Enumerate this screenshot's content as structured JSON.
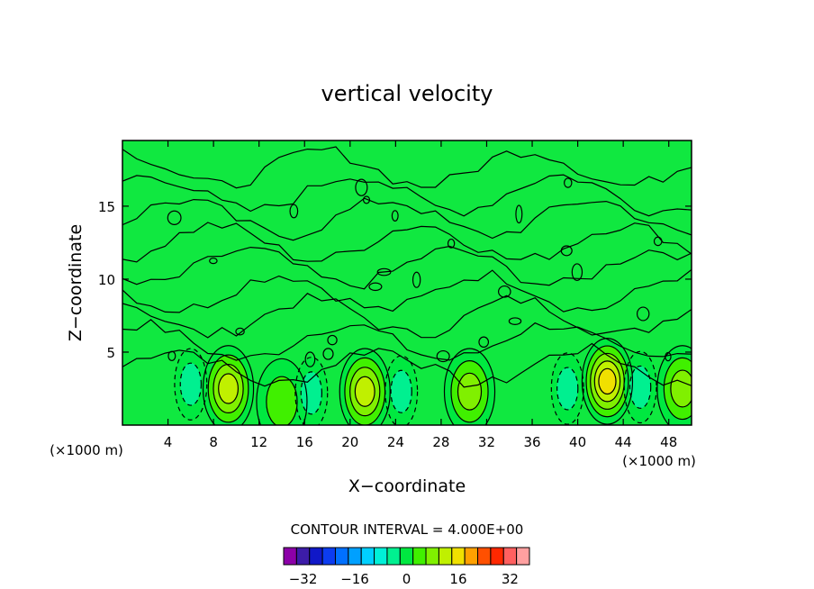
{
  "chart_data": {
    "type": "heatmap",
    "title": "vertical velocity",
    "xlabel": "X−coordinate",
    "ylabel": "Z−coordinate",
    "x_unit_label": "(×1000 m)",
    "y_unit_label": "(×1000 m)",
    "xlim": [
      0,
      50
    ],
    "ylim": [
      0,
      19.5
    ],
    "x_ticks": [
      4,
      8,
      12,
      16,
      20,
      24,
      28,
      32,
      36,
      40,
      44,
      48
    ],
    "y_ticks": [
      5,
      10,
      15
    ],
    "contour_interval_text": "CONTOUR INTERVAL = 4.000E+00",
    "contour_interval": 4,
    "colorbar": {
      "levels": [
        -36,
        -32,
        -28,
        -24,
        -20,
        -16,
        -12,
        -8,
        -4,
        0,
        4,
        8,
        12,
        16,
        20,
        24,
        28,
        32,
        36
      ],
      "colors": [
        "#8c00a8",
        "#3c1ca8",
        "#1018c8",
        "#0c3cf0",
        "#0070ff",
        "#00a0ff",
        "#00d0ff",
        "#00f0d8",
        "#00f090",
        "#00e840",
        "#40f000",
        "#80f000",
        "#c0f000",
        "#f0e000",
        "#ffa000",
        "#ff5000",
        "#ff2800",
        "#ff6060",
        "#ffa0a0"
      ],
      "tick_labels": [
        "−32",
        "−16",
        "0",
        "16",
        "32"
      ],
      "tick_values": [
        -32,
        -16,
        0,
        16,
        32
      ]
    },
    "features": [
      {
        "x": 9.3,
        "z": 2.5,
        "value": 12,
        "kind": "updraft"
      },
      {
        "x": 21.3,
        "z": 2.3,
        "value": 12,
        "kind": "updraft"
      },
      {
        "x": 42.6,
        "z": 3.0,
        "value": 16,
        "kind": "updraft"
      },
      {
        "x": 30.5,
        "z": 2.3,
        "value": 8,
        "kind": "updraft"
      },
      {
        "x": 49.2,
        "z": 2.5,
        "value": 8,
        "kind": "updraft"
      },
      {
        "x": 14.0,
        "z": 1.6,
        "value": 4,
        "kind": "updraft"
      },
      {
        "x": 6.0,
        "z": 2.8,
        "value": -4,
        "kind": "downdraft"
      },
      {
        "x": 16.6,
        "z": 2.2,
        "value": -4,
        "kind": "downdraft"
      },
      {
        "x": 24.5,
        "z": 2.3,
        "value": -4,
        "kind": "downdraft"
      },
      {
        "x": 39.1,
        "z": 2.5,
        "value": -4,
        "kind": "downdraft"
      },
      {
        "x": 45.5,
        "z": 2.6,
        "value": -4,
        "kind": "downdraft"
      }
    ]
  }
}
